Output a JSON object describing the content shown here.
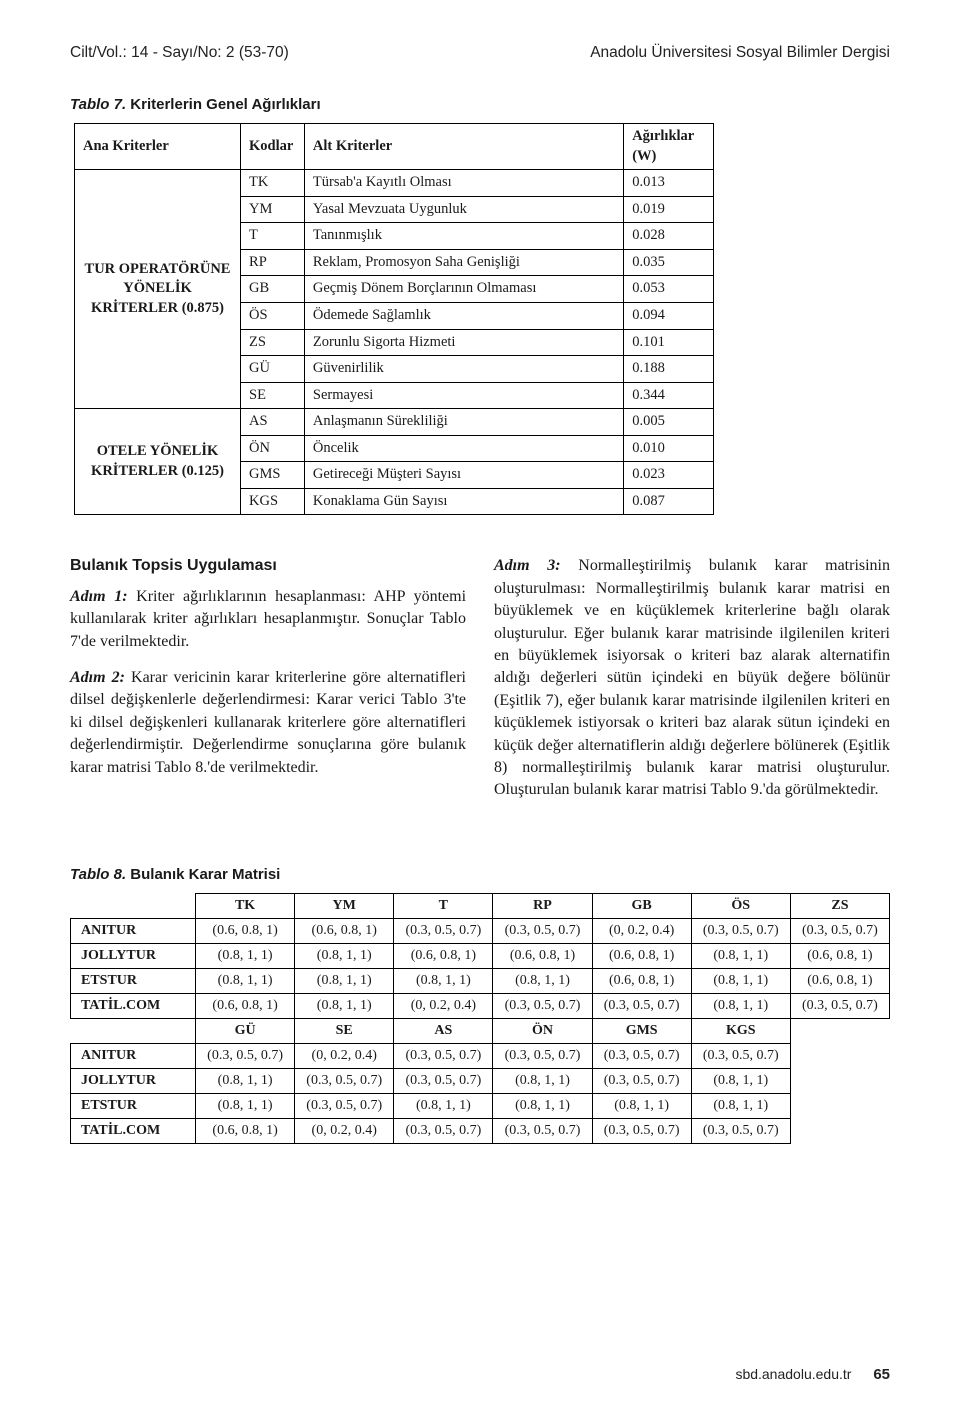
{
  "running_header": {
    "left": "Cilt/Vol.: 14 - Sayı/No: 2 (53-70)",
    "right": "Anadolu Üniversitesi Sosyal Bilimler Dergisi"
  },
  "tablo7": {
    "caption_prefix": "Tablo 7.",
    "caption_rest": " Kriterlerin Genel Ağırlıkları",
    "head": {
      "ana": "Ana Kriterler",
      "kod": "Kodlar",
      "alt": "Alt Kriterler",
      "w": "Ağırlıklar (W)"
    },
    "groups": [
      {
        "label": "TUR OPERATÖRÜNE YÖNELİK KRİTERLER (0.875)",
        "rows": [
          {
            "kod": "TK",
            "alt": "Türsab'a Kayıtlı Olması",
            "w": "0.013"
          },
          {
            "kod": "YM",
            "alt": "Yasal Mevzuata Uygunluk",
            "w": "0.019"
          },
          {
            "kod": "T",
            "alt": "Tanınmışlık",
            "w": "0.028"
          },
          {
            "kod": "RP",
            "alt": "Reklam, Promosyon Saha Genişliği",
            "w": "0.035"
          },
          {
            "kod": "GB",
            "alt": "Geçmiş Dönem Borçlarının Olmaması",
            "w": "0.053"
          },
          {
            "kod": "ÖS",
            "alt": "Ödemede Sağlamlık",
            "w": "0.094"
          },
          {
            "kod": "ZS",
            "alt": "Zorunlu Sigorta Hizmeti",
            "w": "0.101"
          },
          {
            "kod": "GÜ",
            "alt": "Güvenirlilik",
            "w": "0.188"
          },
          {
            "kod": "SE",
            "alt": "Sermayesi",
            "w": "0.344"
          }
        ]
      },
      {
        "label": "OTELE YÖNELİK KRİTERLER (0.125)",
        "rows": [
          {
            "kod": "AS",
            "alt": "Anlaşmanın Sürekliliği",
            "w": "0.005"
          },
          {
            "kod": "ÖN",
            "alt": "Öncelik",
            "w": "0.010"
          },
          {
            "kod": "GMS",
            "alt": "Getireceği Müşteri Sayısı",
            "w": "0.023"
          },
          {
            "kod": "KGS",
            "alt": "Konaklama Gün Sayısı",
            "w": "0.087"
          }
        ]
      }
    ]
  },
  "body": {
    "left": {
      "heading": "Bulanık Topsis Uygulaması",
      "p1_lead": "Adım 1:",
      "p1_rest": " Kriter ağırlıklarının hesaplanması: AHP yöntemi kullanılarak kriter ağırlıkları hesaplanmıştır. Sonuçlar Tablo 7'de verilmektedir.",
      "p2_lead": "Adım 2:",
      "p2_rest": " Karar vericinin karar kriterlerine göre alternatifleri dilsel değişkenlerle değerlendirmesi: Karar verici Tablo 3'te ki dilsel değişkenleri kullanarak kriterlere göre alternatifleri değerlendirmiştir. Değerlendirme sonuçlarına göre bulanık karar matrisi Tablo 8.'de verilmektedir."
    },
    "right": {
      "p3_lead": "Adım 3:",
      "p3_rest": " Normalleştirilmiş bulanık karar matrisinin oluşturulması: Normalleştirilmiş bulanık karar matrisi en büyüklemek ve en küçüklemek kriterlerine bağlı olarak oluşturulur. Eğer bulanık karar matrisinde ilgilenilen kriteri en büyüklemek isiyorsak o kriteri baz alarak alternatifin aldığı değerleri sütün içindeki en büyük değere bölünür (Eşitlik 7), eğer bulanık karar matrisinde ilgilenilen kriteri en küçüklemek istiyorsak o kriteri baz alarak sütun içindeki en küçük değer alternatiflerin aldığı değerlere bölünerek (Eşitlik 8) normalleştirilmiş bulanık karar matrisi oluşturulur. Oluşturulan bulanık karar matrisi Tablo 9.'da görülmektedir."
    }
  },
  "tablo8": {
    "caption_prefix": "Tablo 8.",
    "caption_rest": " Bulanık Karar Matrisi",
    "cols_top": [
      "TK",
      "YM",
      "T",
      "RP",
      "GB",
      "ÖS",
      "ZS"
    ],
    "cols_bot": [
      "GÜ",
      "SE",
      "AS",
      "ÖN",
      "GMS",
      "KGS"
    ],
    "rows_top": {
      "ANITUR": [
        "(0.6, 0.8, 1)",
        "(0.6, 0.8, 1)",
        "(0.3, 0.5, 0.7)",
        "(0.3, 0.5, 0.7)",
        "(0, 0.2, 0.4)",
        "(0.3, 0.5, 0.7)",
        "(0.3, 0.5, 0.7)"
      ],
      "JOLLYTUR": [
        "(0.8, 1, 1)",
        "(0.8, 1, 1)",
        "(0.6, 0.8, 1)",
        "(0.6, 0.8, 1)",
        "(0.6, 0.8, 1)",
        "(0.8, 1, 1)",
        "(0.6, 0.8, 1)"
      ],
      "ETSTUR": [
        "(0.8, 1, 1)",
        "(0.8, 1, 1)",
        "(0.8, 1, 1)",
        "(0.8, 1, 1)",
        "(0.6, 0.8, 1)",
        "(0.8, 1, 1)",
        "(0.6, 0.8, 1)"
      ],
      "TATİL.COM": [
        "(0.6, 0.8, 1)",
        "(0.8, 1, 1)",
        "(0, 0.2, 0.4)",
        "(0.3, 0.5, 0.7)",
        "(0.3, 0.5, 0.7)",
        "(0.8, 1, 1)",
        "(0.3, 0.5, 0.7)"
      ]
    },
    "rows_bot": {
      "ANITUR": [
        "(0.3, 0.5, 0.7)",
        "(0, 0.2, 0.4)",
        "(0.3, 0.5, 0.7)",
        "(0.3, 0.5, 0.7)",
        "(0.3, 0.5, 0.7)",
        "(0.3, 0.5, 0.7)"
      ],
      "JOLLYTUR": [
        "(0.8, 1, 1)",
        "(0.3, 0.5, 0.7)",
        "(0.3, 0.5, 0.7)",
        "(0.8, 1, 1)",
        "(0.3, 0.5, 0.7)",
        "(0.8, 1, 1)"
      ],
      "ETSTUR": [
        "(0.8, 1, 1)",
        "(0.3, 0.5, 0.7)",
        "(0.8, 1, 1)",
        "(0.8, 1, 1)",
        "(0.8, 1, 1)",
        "(0.8, 1, 1)"
      ],
      "TATİL.COM": [
        "(0.6, 0.8, 1)",
        "(0, 0.2, 0.4)",
        "(0.3, 0.5, 0.7)",
        "(0.3, 0.5, 0.7)",
        "(0.3, 0.5, 0.7)",
        "(0.3, 0.5, 0.7)"
      ]
    },
    "row_order": [
      "ANITUR",
      "JOLLYTUR",
      "ETSTUR",
      "TATİL.COM"
    ]
  },
  "footer": {
    "url": "sbd.anadolu.edu.tr",
    "page": "65"
  },
  "style": {
    "font_body": "Times New Roman",
    "font_sans": "Arial Narrow",
    "text_color": "#1a1a1a",
    "border_color": "#000000",
    "background": "#ffffff",
    "body_fontsize_pt": 12,
    "table_fontsize_pt": 10.5
  }
}
